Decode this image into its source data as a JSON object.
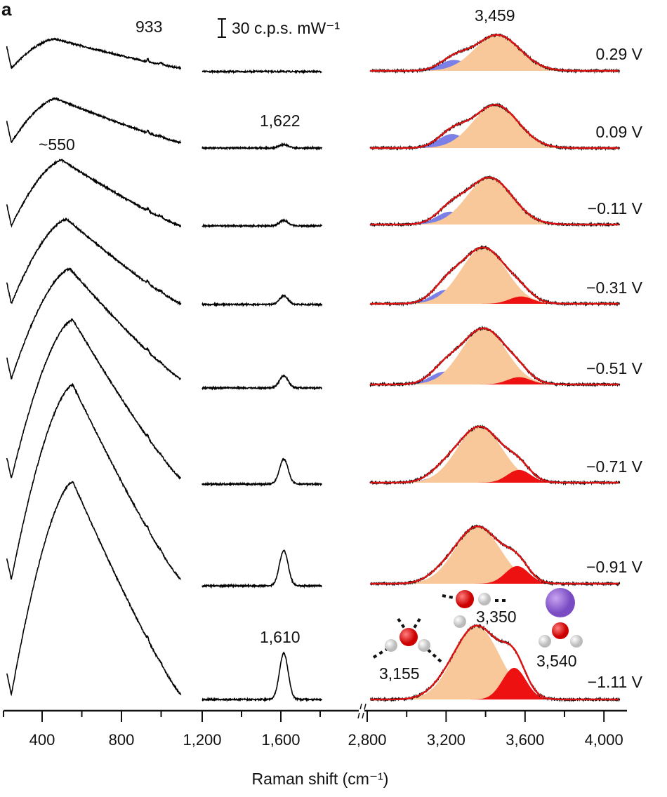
{
  "chart_data": {
    "type": "line",
    "panel_label": "a",
    "xlabel": "Raman shift (cm⁻¹)",
    "x_ticks": [
      "400",
      "800",
      "1,200",
      "1,600",
      "2,800",
      "3,200",
      "3,600",
      "4,000"
    ],
    "x_tick_values": [
      400,
      800,
      1200,
      1600,
      2800,
      3200,
      3600,
      4000
    ],
    "x_segments": [
      [
        220,
        1100
      ],
      [
        1200,
        1810
      ],
      [
        2815,
        4080
      ]
    ],
    "axis_break": "1,810-2,800",
    "scale_bar": "30 c.p.s. mW⁻¹",
    "scale_bar_value": 30,
    "annotations": [
      "933",
      "~550",
      "1,622",
      "1,610",
      "3,459",
      "3,155",
      "3,350",
      "3,540"
    ],
    "component_colors": {
      "blue": "#7b7fe6",
      "orange": "#f8c89a",
      "red": "#ee1111",
      "fit": "#dd1111",
      "data": "#000000"
    },
    "series": [
      {
        "name": "0.29 V",
        "low_peak": 464,
        "low_height": 48,
        "bend_height": 0,
        "blue": [
          3240,
          18
        ],
        "orange": [
          3459,
          59
        ],
        "red": [
          3560,
          0
        ]
      },
      {
        "name": "0.09 V",
        "low_peak": 470,
        "low_height": 72,
        "bend_height": 6,
        "blue": [
          3230,
          23
        ],
        "orange": [
          3450,
          71
        ],
        "red": [
          3560,
          0
        ]
      },
      {
        "name": "−0.11 V",
        "low_peak": 500,
        "low_height": 108,
        "bend_height": 9,
        "blue": [
          3220,
          21
        ],
        "orange": [
          3420,
          77
        ],
        "red": [
          3570,
          0
        ]
      },
      {
        "name": "−0.31 V",
        "low_peak": 525,
        "low_height": 139,
        "bend_height": 14,
        "blue": [
          3200,
          23
        ],
        "orange": [
          3390,
          92
        ],
        "red": [
          3580,
          12
        ]
      },
      {
        "name": "−0.51 V",
        "low_peak": 540,
        "low_height": 181,
        "bend_height": 20,
        "blue": [
          3190,
          21
        ],
        "orange": [
          3390,
          92
        ],
        "red": [
          3570,
          12
        ]
      },
      {
        "name": "−0.71 V",
        "low_peak": 555,
        "low_height": 261,
        "bend_height": 41,
        "blue": [
          3180,
          12
        ],
        "orange": [
          3370,
          92
        ],
        "red": [
          3570,
          21
        ]
      },
      {
        "name": "−0.91 V",
        "low_peak": 555,
        "low_height": 320,
        "bend_height": 58,
        "blue": [
          3170,
          8
        ],
        "orange": [
          3360,
          94
        ],
        "red": [
          3560,
          29
        ]
      },
      {
        "name": "−1.11 V",
        "low_peak": 555,
        "low_height": 350,
        "bend_height": 76,
        "blue": [
          3165,
          6
        ],
        "orange": [
          3355,
          121
        ],
        "red": [
          3545,
          52
        ]
      }
    ]
  }
}
